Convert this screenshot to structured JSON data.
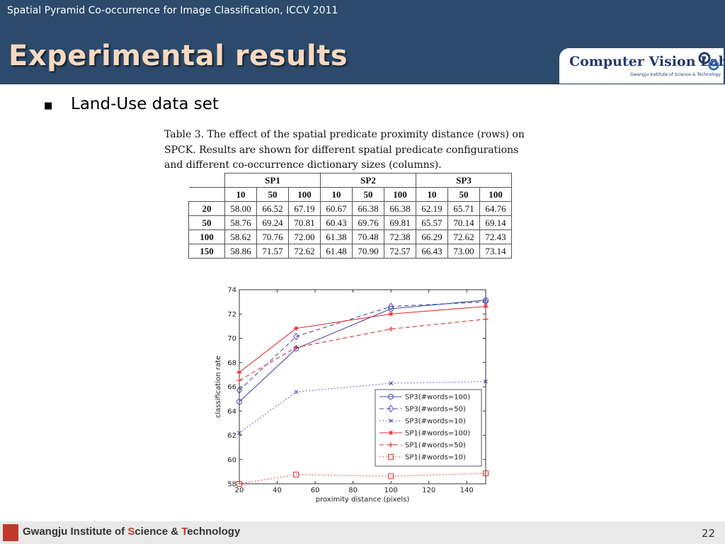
{
  "header": {
    "subtitle": "Spatial Pyramid Co-occurrence for Image Classification, ICCV 2011",
    "title": "Experimental results"
  },
  "logo": {
    "main": "Computer Vision Lab.",
    "sub": "Gwangju Institute of Science & Technology"
  },
  "bullet": {
    "text": "Land-Use data set"
  },
  "table": {
    "caption": "Table 3. The effect of the spatial predicate proximity distance (rows) on SPCK. Results are shown for different spatial predicate configurations and different co-occurrence dictionary sizes (columns).",
    "groups": [
      "SP1",
      "SP2",
      "SP3"
    ],
    "subheaders": [
      "10",
      "50",
      "100",
      "10",
      "50",
      "100",
      "10",
      "50",
      "100"
    ],
    "rows": [
      {
        "label": "20",
        "values": [
          "58.00",
          "66.52",
          "67.19",
          "60.67",
          "66.38",
          "66.38",
          "62.19",
          "65.71",
          "64.76"
        ]
      },
      {
        "label": "50",
        "values": [
          "58.76",
          "69.24",
          "70.81",
          "60.43",
          "69.76",
          "69.81",
          "65.57",
          "70.14",
          "69.14"
        ]
      },
      {
        "label": "100",
        "values": [
          "58.62",
          "70.76",
          "72.00",
          "61.38",
          "70.48",
          "72.38",
          "66.29",
          "72.62",
          "72.43"
        ]
      },
      {
        "label": "150",
        "values": [
          "58.86",
          "71.57",
          "72.62",
          "61.48",
          "70.90",
          "72.57",
          "66.43",
          "73.00",
          "73.14"
        ]
      }
    ]
  },
  "chart_data": {
    "type": "line",
    "xlabel": "proximity distance (pixels)",
    "ylabel": "classification rate",
    "xlim": [
      20,
      150
    ],
    "ylim": [
      58,
      74
    ],
    "xticks": [
      20,
      40,
      60,
      80,
      100,
      120,
      140
    ],
    "yticks": [
      58,
      60,
      62,
      64,
      66,
      68,
      70,
      72,
      74
    ],
    "x": [
      20,
      50,
      100,
      150
    ],
    "legend_position": "lower-right",
    "series": [
      {
        "name": "SP3(#words=100)",
        "values": [
          64.76,
          69.14,
          72.43,
          73.14
        ],
        "color": "#4a4aa8",
        "dash": "solid",
        "marker": "circle"
      },
      {
        "name": "SP3(#words=50)",
        "values": [
          65.71,
          70.14,
          72.62,
          73.0
        ],
        "color": "#4a4aa8",
        "dash": "dashed",
        "marker": "diamond"
      },
      {
        "name": "SP3(#words=10)",
        "values": [
          62.19,
          65.57,
          66.29,
          66.43
        ],
        "color": "#4a4aa8",
        "dash": "dotted",
        "marker": "x"
      },
      {
        "name": "SP1(#words=100)",
        "values": [
          67.19,
          70.81,
          72.0,
          72.62
        ],
        "color": "#e03030",
        "dash": "solid",
        "marker": "star"
      },
      {
        "name": "SP1(#words=50)",
        "values": [
          66.52,
          69.24,
          70.76,
          71.57
        ],
        "color": "#e03030",
        "dash": "dashed",
        "marker": "plus"
      },
      {
        "name": "SP1(#words=10)",
        "values": [
          58.0,
          58.76,
          58.62,
          58.86
        ],
        "color": "#e03030",
        "dash": "dotted",
        "marker": "square"
      }
    ]
  },
  "footer": {
    "prefix": "Gwangju Institute of ",
    "s_letter": "S",
    "mid": "cience & ",
    "t_letter": "T",
    "suffix": "echnology",
    "page": "22"
  }
}
